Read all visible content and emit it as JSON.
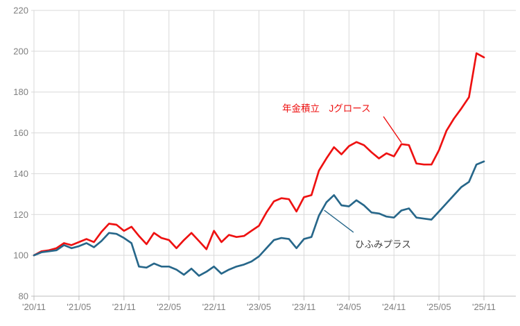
{
  "chart_data": {
    "type": "line",
    "title": "",
    "x_interval": "monthly",
    "x_start": "'20/11",
    "x_end": "'25/11",
    "x_tick_labels": [
      "'20/11",
      "'21/05",
      "'21/11",
      "'22/05",
      "'22/11",
      "'23/05",
      "'23/11",
      "'24/05",
      "'24/11",
      "'25/05",
      "'25/11"
    ],
    "x_tick_month_positions": [
      0,
      6,
      12,
      18,
      24,
      30,
      36,
      42,
      48,
      54,
      60
    ],
    "y_ticks": [
      80,
      100,
      120,
      140,
      160,
      180,
      200,
      220
    ],
    "ylim": [
      80,
      220
    ],
    "grid": true,
    "legend_position": "none (inline annotations)",
    "colors": {
      "background": "#ffffff",
      "gridline": "#d9d9d9",
      "axis_line": "#bdbdbd",
      "axis_text": "#7f7f7f",
      "red_series": "#ee1111",
      "blue_series": "#27678a",
      "blue_annotation_text": "#404040"
    },
    "series": [
      {
        "name": "年金積立 Jグロース",
        "color": "#ee1111",
        "values": [
          100,
          102,
          102.5,
          103.5,
          106,
          105,
          106.5,
          108,
          106.5,
          111.5,
          115.5,
          115,
          112,
          114,
          109.5,
          105.5,
          111,
          108.5,
          107.5,
          103.5,
          107.5,
          111,
          107,
          103,
          112,
          106.5,
          110,
          109,
          109.5,
          112,
          114.5,
          121,
          126.5,
          128,
          127.5,
          121.5,
          128.5,
          129.5,
          141.5,
          147.5,
          153,
          149.5,
          153.5,
          155.5,
          154,
          150.5,
          147.5,
          150,
          148.5,
          154.5,
          154,
          145,
          144.5,
          144.5,
          151.5,
          161,
          167,
          172,
          177.5,
          199,
          197
        ]
      },
      {
        "name": "ひふみプラス",
        "color": "#27678a",
        "values": [
          100,
          101.5,
          102,
          102.5,
          105,
          103.5,
          104.5,
          106,
          104,
          107,
          111,
          110.5,
          108.5,
          106,
          94.5,
          94,
          96,
          94.5,
          94.5,
          93,
          90.5,
          93.5,
          90,
          92,
          94.5,
          91,
          93,
          94.5,
          95.5,
          97,
          99.5,
          103.5,
          107.5,
          108.5,
          108,
          103.5,
          108,
          109,
          119.5,
          126,
          129.5,
          124.5,
          124,
          127,
          124.5,
          121,
          120.5,
          119,
          118.5,
          122,
          123,
          118.5,
          118,
          117.5,
          121.5,
          125.5,
          129.5,
          133.5,
          136,
          144.5,
          146
        ]
      }
    ],
    "annotations": [
      {
        "text": "年金積立　Jグロース",
        "color": "#ee1111",
        "leader": {
          "from_month": 46.6,
          "from_value": 168,
          "to_month": 49.0,
          "to_value": 155.2
        }
      },
      {
        "text": "ひふみプラス",
        "color": "#404040",
        "leader": {
          "from_month": 38.7,
          "from_value": 122.1,
          "to_month": 42.6,
          "to_value": 111.3
        }
      }
    ]
  }
}
